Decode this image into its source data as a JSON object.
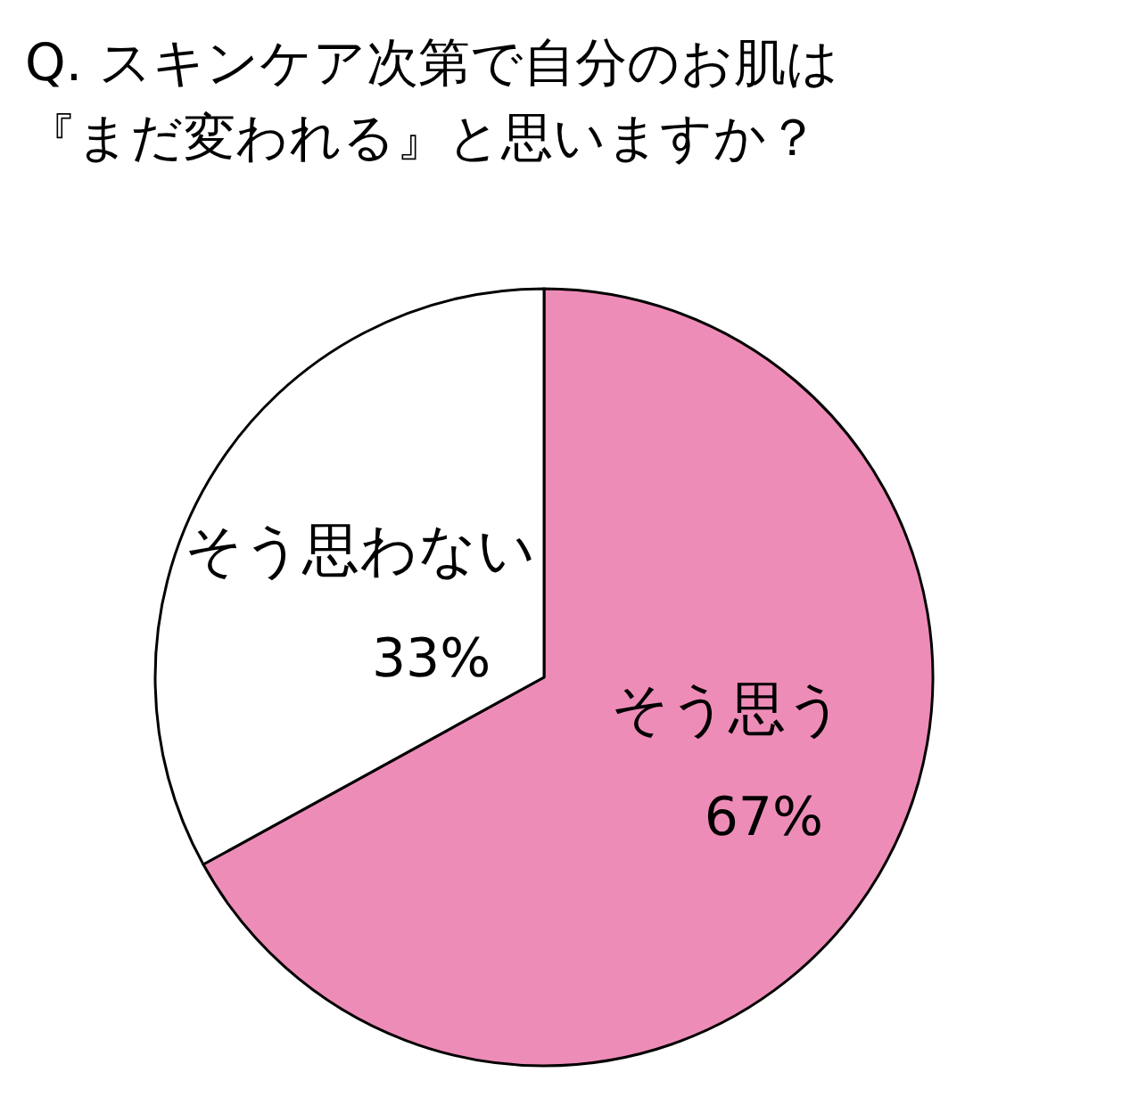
{
  "chart_data": {
    "type": "pie",
    "title": "Q. スキンケア次第で自分のお肌は『まだ変われる』と思いますか？",
    "categories": [
      "そう思う",
      "そう思わない"
    ],
    "values": [
      67,
      33
    ],
    "colors": [
      "#ee8cb8",
      "#ffffff"
    ],
    "value_labels": [
      "67%",
      "33%"
    ]
  }
}
